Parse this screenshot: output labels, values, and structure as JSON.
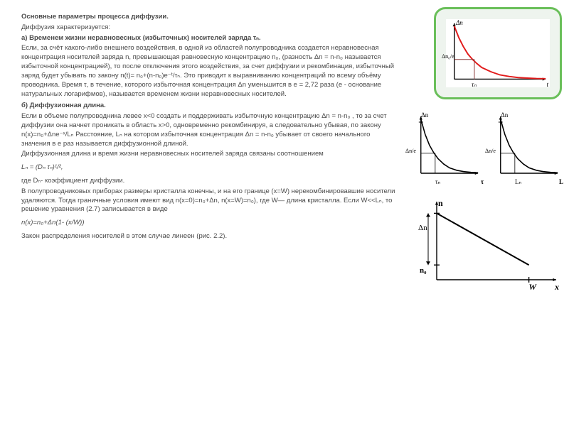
{
  "text": {
    "title": "Основные параметры процесса диффузии.",
    "intro": "Диффузия характеризуется:",
    "sec_a_head": "а) Временем жизни неравновесных (избыточных) носителей заряда τₙ.",
    "sec_a_body": "Если, за счёт какого-либо внешнего воздействия, в одной из областей полупроводника создается неравновесная концентрация носителей заряда n, превышающая равновесную концентрацию n₀, (разность Δn = n-n₀ называется избыточной концентрацией), то после отключения этого воздействия, за счет диффузии и рекомбинация, избыточный заряд будет убывать по закону n(t)= n₀+(n-n₀)e⁻ᵗ/τₙ. Это приводит к выравниванию концентраций по всему объёму проводника. Время τ, в течение, которого избыточная концентрация Δn уменьшится в e = 2,72 раза (e - основание натуральных логарифмов), называется временем жизни неравновесных носителей.",
    "sec_b_head": " б) Диффузионная длина.",
    "sec_b_body1": "Если в объеме полупроводника левее x<0 создать и поддерживать избыточную концентрацию Δn = n-n₀ , то за счет диффузии она начнет проникать в область x>0, одновременно рекомбинируя, а следовательно убывая, по закону n(x)=n₀+Δne⁻ˣ/Lₙ Расстояние, Lₙ на котором избыточная концентрация Δn = n-n₀ убывает от своего начального значения в e раз называется диффузионной длиной.",
    "sec_b_body2": "Диффузионная длина и время жизни неравновесных носителей заряда связаны соотношением",
    "eq1": "Lₙ = (Dₙ τₙ)¹/²,",
    "eq1_note": "где Dₙ- коэффициент диффузии.",
    "body3": "В полупроводниковых приборах размеры кристалла конечны, и на его границе (x=W) нерекомбинировавшие носители удаляются. Тогда граничные условия имеют вид n(x=0)=n₀+Δn, n(x=W)=n₀), где W— длина кристалла. Если W<<Lₙ, то решение уравнения (2.7) записывается в виде",
    "eq2": "n(x)=n₀+Δn(1- (x/W))",
    "closing": "Закон распределения носителей в этом случае линеен (рис. 2.2)."
  },
  "fig1": {
    "type": "line",
    "frame_color": "#6abf5a",
    "frame_bg": "#eef4ee",
    "plot_bg": "#ffffff",
    "curve_color": "#e11b1b",
    "curve_width": 2,
    "axes_color": "#000000",
    "guide_color": "#8a3b3b",
    "y_label_top": "Δn",
    "y_label_mid": "Δn₀/e",
    "x_label_mid": "τₙ",
    "x_label_end": "t",
    "xlim": [
      0,
      10
    ],
    "ylim": [
      0,
      1
    ],
    "points_x": [
      0,
      0.5,
      1,
      1.5,
      2,
      2.5,
      3,
      4,
      5,
      6,
      7,
      8,
      9,
      10
    ],
    "points_y": [
      1.0,
      0.78,
      0.61,
      0.47,
      0.37,
      0.29,
      0.22,
      0.14,
      0.08,
      0.05,
      0.03,
      0.02,
      0.012,
      0.008
    ],
    "guide_x": 2.2,
    "guide_y": 0.37
  },
  "fig2": {
    "type": "pair-line",
    "curve_color": "#000000",
    "curve_width": 1.6,
    "axes_color": "#000000",
    "left": {
      "y_top": "Δn",
      "y_mid": "Δn/e",
      "x_mid": "τₙ",
      "x_end": "τ"
    },
    "right": {
      "y_top": "Δn",
      "y_mid": "Δn/e",
      "x_mid": "Lₙ",
      "x_end": "L"
    },
    "xlim": [
      0,
      8
    ],
    "ylim": [
      0,
      1
    ],
    "points_x": [
      0,
      0.6,
      1.2,
      1.8,
      2.4,
      3.2,
      4,
      5,
      6,
      7,
      8
    ],
    "points_y": [
      1.0,
      0.72,
      0.52,
      0.38,
      0.27,
      0.17,
      0.1,
      0.055,
      0.03,
      0.017,
      0.01
    ],
    "guide_x": 2.0,
    "guide_y": 0.37
  },
  "fig3": {
    "type": "line-linear",
    "curve_color": "#000000",
    "curve_width": 2,
    "axes_color": "#000000",
    "y_label_top": "n",
    "y_label_dn": "Δn",
    "y_label_n0": "n₀",
    "x_label_w": "W",
    "x_label_end": "x",
    "xlim": [
      0,
      10
    ],
    "ylim": [
      0,
      10
    ],
    "line_x": [
      0,
      8
    ],
    "line_y": [
      9,
      2
    ],
    "n0_level": 2,
    "w_x": 8
  },
  "colors": {
    "text": "#4a4a4a",
    "bg": "#ffffff"
  },
  "fonts": {
    "body_pt": 9.5,
    "axis_pt": 9
  }
}
